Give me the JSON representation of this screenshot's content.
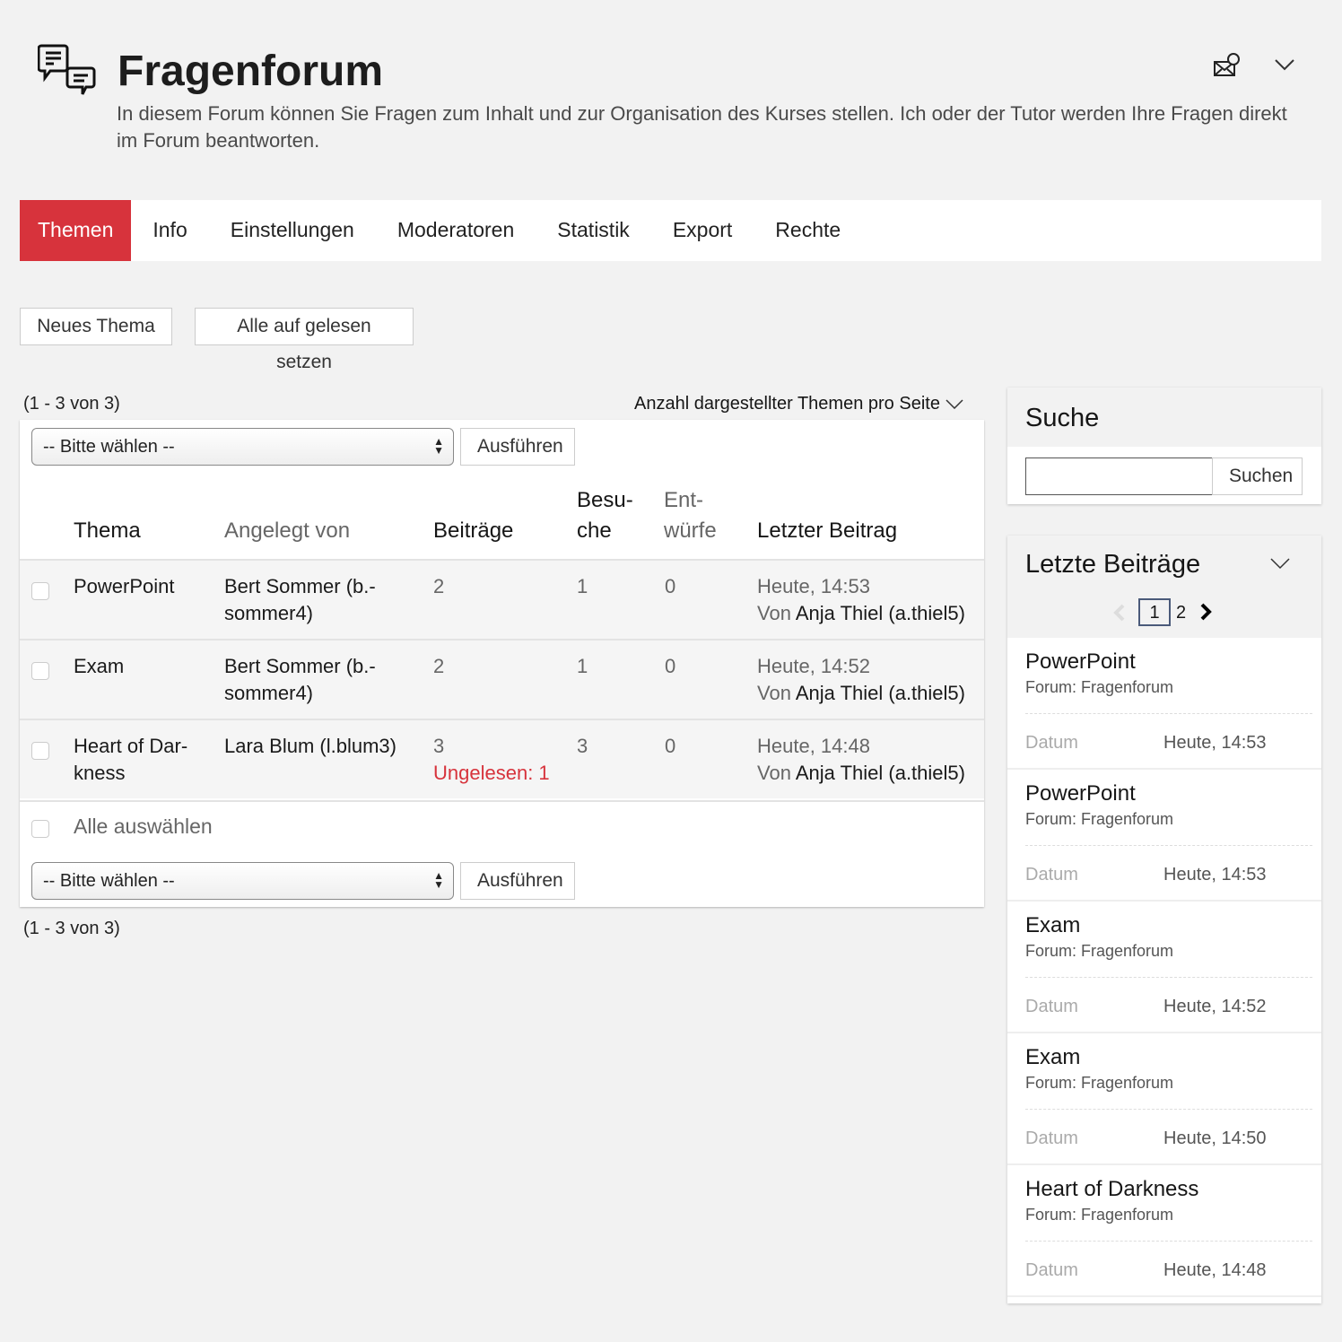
{
  "header": {
    "title": "Fragenforum",
    "description": "In diesem Forum können Sie Fragen zum Inhalt und zur Organisation des Kurses stellen. Ich oder der Tutor werden Ihre Fragen direkt im Forum beantworten."
  },
  "tabs": [
    {
      "label": "Themen",
      "active": true
    },
    {
      "label": "Info"
    },
    {
      "label": "Einstellungen"
    },
    {
      "label": "Moderatoren"
    },
    {
      "label": "Statistik"
    },
    {
      "label": "Export"
    },
    {
      "label": "Rechte"
    }
  ],
  "actions": {
    "new_topic": "Neues Thema",
    "mark_read": "Alle auf gelesen setzen"
  },
  "list": {
    "count": "(1 - 3 von 3)",
    "per_page": "Anzahl dargestellter Themen pro Seite",
    "select": "-- Bitte wählen --",
    "execute": "Ausführen",
    "select_all": "Alle auswählen",
    "columns": {
      "topic": "Thema",
      "created_by": "Angelegt von",
      "posts": "Beiträge",
      "visits_1": "Besu-",
      "visits_2": "che",
      "drafts_1": "Ent-",
      "drafts_2": "würfe",
      "last": "Letzter Beitrag"
    },
    "rows": [
      {
        "topic_1": "PowerPoint",
        "topic_2": "",
        "author_1": "Bert Sommer (b.-",
        "author_2": "sommer4)",
        "posts": "2",
        "unread": "",
        "visits": "1",
        "drafts": "0",
        "last_date": "Heute, 14:53",
        "last_von": "Von",
        "last_user": "Anja Thiel (a.thiel5)"
      },
      {
        "topic_1": "Exam",
        "topic_2": "",
        "author_1": "Bert Sommer (b.-",
        "author_2": "sommer4)",
        "posts": "2",
        "unread": "",
        "visits": "1",
        "drafts": "0",
        "last_date": "Heute, 14:52",
        "last_von": "Von",
        "last_user": "Anja Thiel (a.thiel5)"
      },
      {
        "topic_1": "Heart of Dar-",
        "topic_2": "kness",
        "author_1": "Lara Blum (l.blum3)",
        "author_2": "",
        "posts": "3",
        "unread": "Ungelesen: 1",
        "visits": "3",
        "drafts": "0",
        "last_date": "Heute, 14:48",
        "last_von": "Von",
        "last_user": "Anja Thiel (a.thiel5)"
      }
    ]
  },
  "search": {
    "title": "Suche",
    "value": "",
    "button": "Suchen"
  },
  "recent": {
    "title": "Letzte Beiträge",
    "pages": [
      "1",
      "2"
    ],
    "current_page": "1",
    "date_label": "Datum",
    "items": [
      {
        "title": "PowerPoint",
        "forum": "Forum: Fragenforum",
        "date": "Heute, 14:53"
      },
      {
        "title": "PowerPoint",
        "forum": "Forum: Fragenforum",
        "date": "Heute, 14:53"
      },
      {
        "title": "Exam",
        "forum": "Forum: Fragenforum",
        "date": "Heute, 14:52"
      },
      {
        "title": "Exam",
        "forum": "Forum: Fragenforum",
        "date": "Heute, 14:50"
      },
      {
        "title": "Heart of Darkness",
        "forum": "Forum: Fragenforum",
        "date": "Heute, 14:48"
      }
    ]
  },
  "colors": {
    "accent": "#d7333c",
    "unread": "#d7333c"
  }
}
